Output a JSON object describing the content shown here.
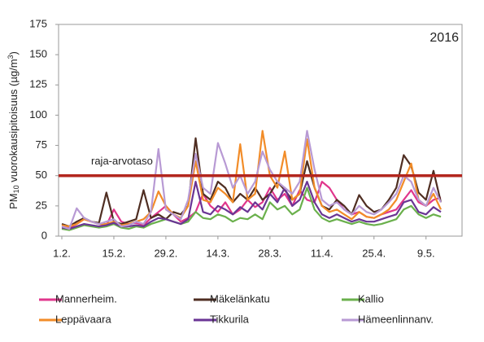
{
  "chart_data": {
    "type": "line",
    "ylabel": [
      "PM",
      "10",
      " vuorokausipitoisuus (µg/m",
      "3",
      ")"
    ],
    "year_label": "2016",
    "limit": 50,
    "limit_label": "raja-arvotaso",
    "limit_color": "#b3261e",
    "ylim": [
      0,
      175
    ],
    "yticks": [
      0,
      25,
      50,
      75,
      100,
      125,
      150,
      175
    ],
    "categories": [
      "1.2.",
      null,
      null,
      null,
      null,
      null,
      null,
      "15.2.",
      null,
      null,
      null,
      null,
      null,
      null,
      "29.2.",
      null,
      null,
      null,
      null,
      null,
      null,
      "14.3.",
      null,
      null,
      null,
      null,
      null,
      null,
      "28.3.",
      null,
      null,
      null,
      null,
      null,
      null,
      "11.4.",
      null,
      null,
      null,
      null,
      null,
      null,
      "25.4.",
      null,
      null,
      null,
      null,
      null,
      null,
      "9.5.",
      null,
      null
    ],
    "series": [
      {
        "name": "Mannerheim.",
        "color": "#e0368c",
        "values": [
          8,
          7,
          10,
          14,
          12,
          10,
          9,
          22,
          12,
          10,
          11,
          9,
          15,
          20,
          25,
          18,
          12,
          15,
          20,
          35,
          25,
          20,
          28,
          18,
          22,
          30,
          24,
          28,
          40,
          30,
          35,
          25,
          38,
          30,
          28,
          45,
          40,
          30,
          22,
          18,
          20,
          16,
          15,
          18,
          20,
          22,
          30,
          38,
          28,
          25,
          30,
          32
        ]
      },
      {
        "name": "Mäkelänkatu",
        "color": "#4f2e22",
        "values": [
          10,
          8,
          12,
          15,
          12,
          11,
          36,
          12,
          10,
          12,
          14,
          38,
          15,
          18,
          14,
          20,
          18,
          25,
          81,
          35,
          30,
          45,
          40,
          28,
          35,
          30,
          40,
          30,
          35,
          45,
          38,
          30,
          35,
          62,
          40,
          25,
          22,
          30,
          25,
          18,
          34,
          25,
          20,
          22,
          30,
          40,
          67,
          58,
          36,
          30,
          54,
          28
        ]
      },
      {
        "name": "Kallio",
        "color": "#6ab04c",
        "values": [
          6,
          5,
          7,
          9,
          8,
          7,
          8,
          10,
          7,
          6,
          8,
          7,
          10,
          12,
          14,
          12,
          10,
          12,
          20,
          15,
          14,
          18,
          16,
          12,
          15,
          14,
          18,
          14,
          28,
          22,
          25,
          18,
          22,
          40,
          22,
          15,
          12,
          14,
          12,
          10,
          12,
          10,
          9,
          10,
          12,
          14,
          22,
          25,
          18,
          15,
          18,
          16
        ]
      },
      {
        "name": "Leppävaara",
        "color": "#f28c28",
        "values": [
          9,
          8,
          10,
          14,
          12,
          10,
          10,
          12,
          9,
          10,
          12,
          14,
          20,
          37,
          25,
          18,
          15,
          25,
          62,
          30,
          28,
          40,
          35,
          28,
          76,
          30,
          35,
          87,
          50,
          40,
          70,
          30,
          35,
          80,
          40,
          25,
          20,
          22,
          18,
          14,
          20,
          16,
          15,
          18,
          22,
          30,
          45,
          60,
          30,
          25,
          35,
          22
        ]
      },
      {
        "name": "Tikkurila",
        "color": "#6a3594",
        "values": [
          7,
          6,
          8,
          10,
          9,
          8,
          9,
          11,
          8,
          8,
          9,
          8,
          12,
          15,
          14,
          12,
          10,
          14,
          45,
          20,
          18,
          25,
          22,
          18,
          24,
          20,
          28,
          22,
          35,
          28,
          40,
          25,
          30,
          45,
          28,
          18,
          15,
          18,
          15,
          12,
          14,
          12,
          12,
          14,
          16,
          18,
          28,
          30,
          20,
          18,
          24,
          20
        ]
      },
      {
        "name": "Hämeenlinnanv.",
        "color": "#b89ad4",
        "values": [
          8,
          6,
          23,
          15,
          12,
          10,
          12,
          14,
          8,
          9,
          12,
          10,
          20,
          72,
          22,
          18,
          14,
          30,
          68,
          40,
          35,
          77,
          60,
          40,
          50,
          35,
          45,
          70,
          55,
          45,
          40,
          35,
          45,
          87,
          55,
          30,
          25,
          28,
          22,
          18,
          25,
          20,
          18,
          22,
          28,
          35,
          50,
          45,
          30,
          25,
          40,
          28
        ]
      }
    ]
  }
}
